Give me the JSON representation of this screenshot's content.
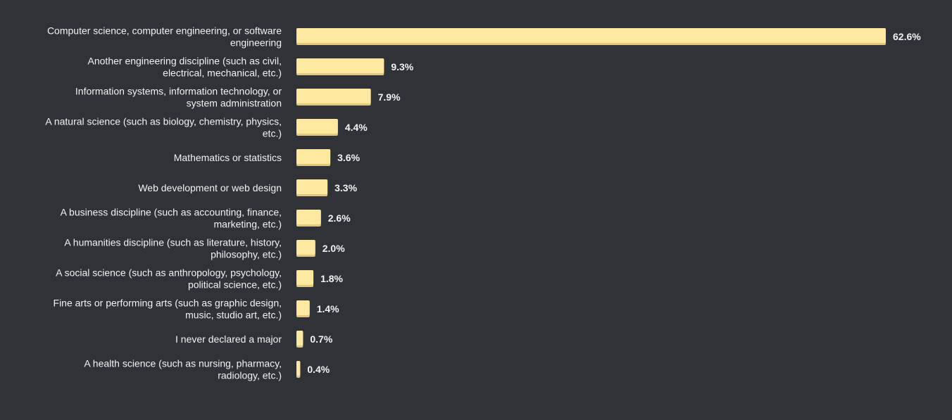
{
  "chart_data": {
    "type": "bar",
    "orientation": "horizontal",
    "unit": "%",
    "categories": [
      [
        "Computer science, computer engineering, or software",
        "engineering"
      ],
      [
        "Another engineering discipline (such as civil,",
        "electrical, mechanical, etc.)"
      ],
      [
        "Information systems, information technology, or",
        "system administration"
      ],
      [
        "A natural science (such as biology, chemistry, physics,",
        "etc.)"
      ],
      [
        "Mathematics or statistics"
      ],
      [
        "Web development or web design"
      ],
      [
        "A business discipline (such as accounting, finance,",
        "marketing, etc.)"
      ],
      [
        "A humanities discipline (such as literature, history,",
        "philosophy, etc.)"
      ],
      [
        "A social science (such as anthropology, psychology,",
        "political science, etc.)"
      ],
      [
        "Fine arts or performing arts (such as graphic design,",
        "music, studio art, etc.)"
      ],
      [
        "I never declared a major"
      ],
      [
        "A health science (such as nursing, pharmacy,",
        "radiology, etc.)"
      ]
    ],
    "values": [
      62.6,
      9.3,
      7.9,
      4.4,
      3.6,
      3.3,
      2.6,
      2.0,
      1.8,
      1.4,
      0.7,
      0.4
    ],
    "value_labels": [
      "62.6%",
      "9.3%",
      "7.9%",
      "4.4%",
      "3.6%",
      "3.3%",
      "2.6%",
      "2.0%",
      "1.8%",
      "1.4%",
      "0.7%",
      "0.4%"
    ],
    "xlim": [
      0,
      62.6
    ],
    "grid": false,
    "legend": "none",
    "colors": {
      "background": "#2f3237",
      "bar": "#fde8a0",
      "bar_shadow": "#e3c77a",
      "text": "#f2f2f2"
    }
  }
}
